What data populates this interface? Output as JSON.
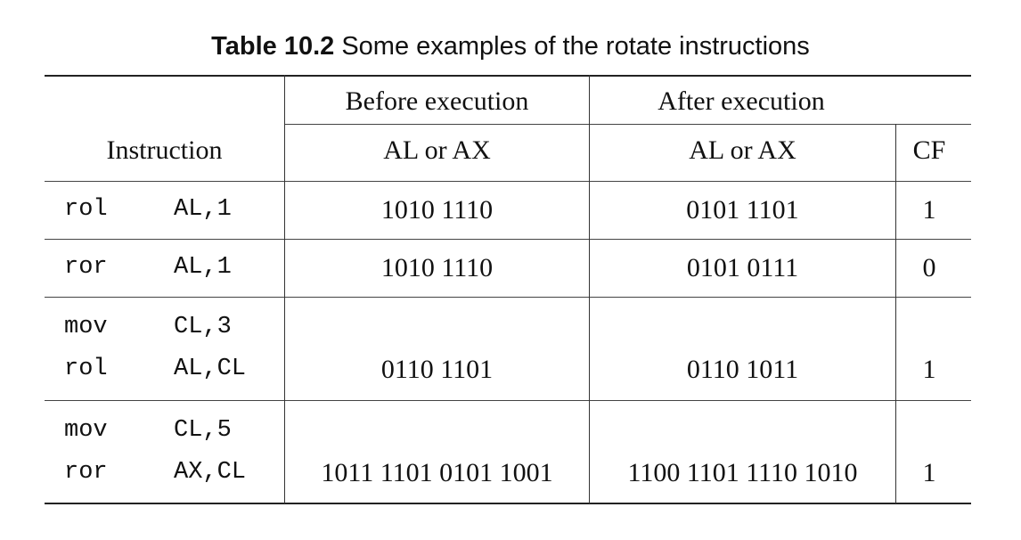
{
  "caption": {
    "number": "Table 10.2",
    "text": "Some examples of the rotate instructions"
  },
  "header": {
    "instruction": "Instruction",
    "before": "Before execution",
    "after": "After execution",
    "before_reg": "AL or AX",
    "after_reg": "AL or AX",
    "cf": "CF"
  },
  "rows": [
    {
      "lines": [
        {
          "op": "rol",
          "args": "AL,1"
        }
      ],
      "before": "1010 1110",
      "after": "0101 1101",
      "cf": "1"
    },
    {
      "lines": [
        {
          "op": "ror",
          "args": "AL,1"
        }
      ],
      "before": "1010 1110",
      "after": "0101 0111",
      "cf": "0"
    },
    {
      "lines": [
        {
          "op": "mov",
          "args": "CL,3"
        },
        {
          "op": "rol",
          "args": "AL,CL"
        }
      ],
      "before": "0110 1101",
      "after": "0110 1011",
      "cf": "1"
    },
    {
      "lines": [
        {
          "op": "mov",
          "args": "CL,5"
        },
        {
          "op": "ror",
          "args": "AX,CL"
        }
      ],
      "before": "1011 1101 0101 1001",
      "after": "1100 1101 1110 1010",
      "cf": "1"
    }
  ]
}
